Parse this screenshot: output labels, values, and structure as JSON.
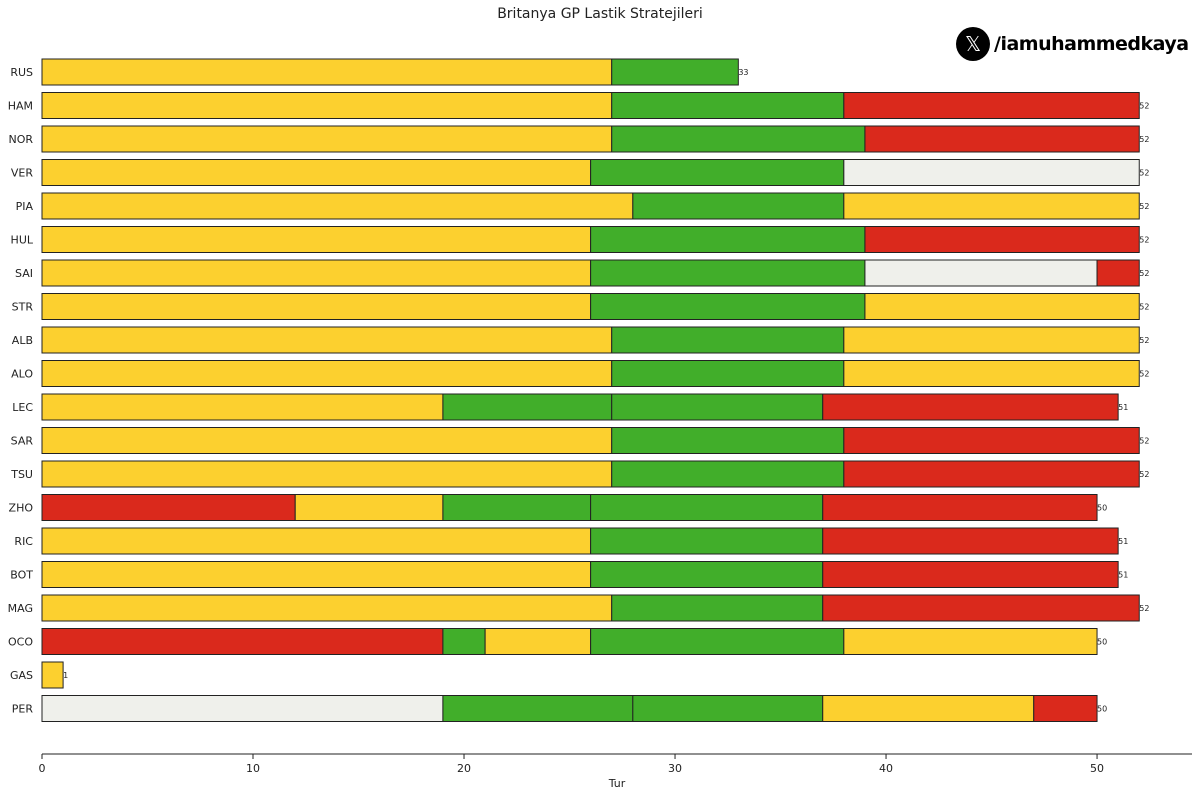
{
  "chart_data": {
    "type": "bar",
    "orientation": "horizontal-stacked",
    "title": "Britanya GP Lastik Stratejileri",
    "xlabel": "Tur",
    "ylabel": "",
    "xlim": [
      0,
      54.5
    ],
    "xticks": [
      0,
      10,
      20,
      30,
      40,
      50
    ],
    "grid": false,
    "compound_colors": {
      "MEDIUM": "#FCD02F",
      "INTERMEDIATE": "#41AE2A",
      "SOFT": "#DA291C",
      "HARD": "#EFF0EB"
    },
    "drivers": [
      {
        "driver": "RUS",
        "stints": [
          {
            "compound": "MEDIUM",
            "end": 27
          },
          {
            "compound": "INTERMEDIATE",
            "end": 33
          }
        ]
      },
      {
        "driver": "HAM",
        "stints": [
          {
            "compound": "MEDIUM",
            "end": 27
          },
          {
            "compound": "INTERMEDIATE",
            "end": 38
          },
          {
            "compound": "SOFT",
            "end": 52
          }
        ]
      },
      {
        "driver": "NOR",
        "stints": [
          {
            "compound": "MEDIUM",
            "end": 27
          },
          {
            "compound": "INTERMEDIATE",
            "end": 39
          },
          {
            "compound": "SOFT",
            "end": 52
          }
        ]
      },
      {
        "driver": "VER",
        "stints": [
          {
            "compound": "MEDIUM",
            "end": 26
          },
          {
            "compound": "INTERMEDIATE",
            "end": 38
          },
          {
            "compound": "HARD",
            "end": 52
          }
        ]
      },
      {
        "driver": "PIA",
        "stints": [
          {
            "compound": "MEDIUM",
            "end": 28
          },
          {
            "compound": "INTERMEDIATE",
            "end": 38
          },
          {
            "compound": "MEDIUM",
            "end": 52
          }
        ]
      },
      {
        "driver": "HUL",
        "stints": [
          {
            "compound": "MEDIUM",
            "end": 26
          },
          {
            "compound": "INTERMEDIATE",
            "end": 39
          },
          {
            "compound": "SOFT",
            "end": 52
          }
        ]
      },
      {
        "driver": "SAI",
        "stints": [
          {
            "compound": "MEDIUM",
            "end": 26
          },
          {
            "compound": "INTERMEDIATE",
            "end": 39
          },
          {
            "compound": "HARD",
            "end": 50
          },
          {
            "compound": "SOFT",
            "end": 52
          }
        ]
      },
      {
        "driver": "STR",
        "stints": [
          {
            "compound": "MEDIUM",
            "end": 26
          },
          {
            "compound": "INTERMEDIATE",
            "end": 39
          },
          {
            "compound": "MEDIUM",
            "end": 52
          }
        ]
      },
      {
        "driver": "ALB",
        "stints": [
          {
            "compound": "MEDIUM",
            "end": 27
          },
          {
            "compound": "INTERMEDIATE",
            "end": 38
          },
          {
            "compound": "MEDIUM",
            "end": 52
          }
        ]
      },
      {
        "driver": "ALO",
        "stints": [
          {
            "compound": "MEDIUM",
            "end": 27
          },
          {
            "compound": "INTERMEDIATE",
            "end": 38
          },
          {
            "compound": "MEDIUM",
            "end": 52
          }
        ]
      },
      {
        "driver": "LEC",
        "stints": [
          {
            "compound": "MEDIUM",
            "end": 19
          },
          {
            "compound": "INTERMEDIATE",
            "end": 27
          },
          {
            "compound": "INTERMEDIATE",
            "end": 37
          },
          {
            "compound": "SOFT",
            "end": 51
          }
        ]
      },
      {
        "driver": "SAR",
        "stints": [
          {
            "compound": "MEDIUM",
            "end": 27
          },
          {
            "compound": "INTERMEDIATE",
            "end": 38
          },
          {
            "compound": "SOFT",
            "end": 52
          }
        ]
      },
      {
        "driver": "TSU",
        "stints": [
          {
            "compound": "MEDIUM",
            "end": 27
          },
          {
            "compound": "INTERMEDIATE",
            "end": 38
          },
          {
            "compound": "SOFT",
            "end": 52
          }
        ]
      },
      {
        "driver": "ZHO",
        "stints": [
          {
            "compound": "SOFT",
            "end": 12
          },
          {
            "compound": "MEDIUM",
            "end": 19
          },
          {
            "compound": "INTERMEDIATE",
            "end": 26
          },
          {
            "compound": "INTERMEDIATE",
            "end": 37
          },
          {
            "compound": "SOFT",
            "end": 50
          }
        ]
      },
      {
        "driver": "RIC",
        "stints": [
          {
            "compound": "MEDIUM",
            "end": 26
          },
          {
            "compound": "INTERMEDIATE",
            "end": 37
          },
          {
            "compound": "SOFT",
            "end": 51
          }
        ]
      },
      {
        "driver": "BOT",
        "stints": [
          {
            "compound": "MEDIUM",
            "end": 26
          },
          {
            "compound": "INTERMEDIATE",
            "end": 37
          },
          {
            "compound": "SOFT",
            "end": 51
          }
        ]
      },
      {
        "driver": "MAG",
        "stints": [
          {
            "compound": "MEDIUM",
            "end": 27
          },
          {
            "compound": "INTERMEDIATE",
            "end": 37
          },
          {
            "compound": "SOFT",
            "end": 52
          }
        ]
      },
      {
        "driver": "OCO",
        "stints": [
          {
            "compound": "SOFT",
            "end": 19
          },
          {
            "compound": "INTERMEDIATE",
            "end": 21
          },
          {
            "compound": "MEDIUM",
            "end": 26
          },
          {
            "compound": "INTERMEDIATE",
            "end": 38
          },
          {
            "compound": "MEDIUM",
            "end": 50
          }
        ]
      },
      {
        "driver": "GAS",
        "stints": [
          {
            "compound": "MEDIUM",
            "end": 1
          }
        ]
      },
      {
        "driver": "PER",
        "stints": [
          {
            "compound": "HARD",
            "end": 19
          },
          {
            "compound": "INTERMEDIATE",
            "end": 28
          },
          {
            "compound": "INTERMEDIATE",
            "end": 37
          },
          {
            "compound": "MEDIUM",
            "end": 47
          },
          {
            "compound": "SOFT",
            "end": 50
          }
        ]
      }
    ]
  },
  "watermark": {
    "icon": "x-logo-icon",
    "glyph": "𝕏",
    "handle": "/iamuhammedkaya"
  }
}
